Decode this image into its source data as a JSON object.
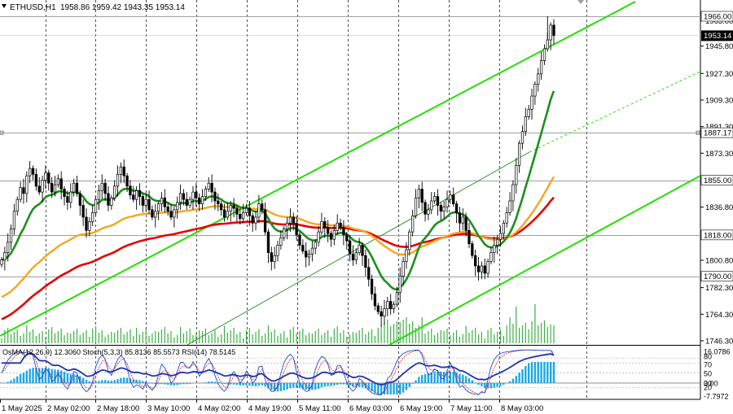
{
  "header": {
    "symbol": "ETHUSD,H1",
    "ohlc": "1958.86 1959.42 1943.35 1953.14"
  },
  "indicator_header": "OsMA(12,26,9) 12.3060  Stoch(5,3,3) 85.8136 85.5573  RSI(14) 78.5145",
  "colors": {
    "candle": "#000000",
    "volume": "#3cb043",
    "channel": "#22e000",
    "ema_fast": "#1e8e1e",
    "ema_mid": "#f5a623",
    "ema_slow": "#e60000",
    "level_line": "#9aa0a6",
    "osma": "#1aa7e6",
    "stoch_main": "#1a4fd6",
    "stoch_signal": "#e02020",
    "rsi": "#2233aa",
    "current_price_bg": "#000000"
  },
  "chart_data": {
    "type": "candlestick",
    "symbol": "ETHUSD",
    "timeframe": "H1",
    "ylim": [
      1746.3,
      1966.0
    ],
    "price_levels": [
      1966.0,
      1887.17,
      1855.0,
      1818.0,
      1790.0
    ],
    "current_price": 1953.14,
    "y_ticks": [
      1963.0,
      1945.8,
      1927.3,
      1909.3,
      1891.3,
      1873.3,
      1836.8,
      1800.8,
      1782.3,
      1764.3,
      1746.3
    ],
    "x_ticks": [
      "1 May 2025",
      "2 May 02:00",
      "2 May 18:00",
      "3 May 10:00",
      "4 May 02:00",
      "4 May 19:00",
      "5 May 11:00",
      "6 May 03:00",
      "6 May 19:00",
      "7 May 11:00",
      "8 May 03:00"
    ],
    "indicator_ticks": [
      "16.0786",
      "80",
      "70",
      "50",
      "30",
      "20",
      "0.00",
      "-7.7972"
    ],
    "closes": [
      1801,
      1806,
      1813,
      1822,
      1834,
      1842,
      1850,
      1846,
      1858,
      1863,
      1859,
      1851,
      1847,
      1855,
      1860,
      1853,
      1847,
      1852,
      1856,
      1849,
      1844,
      1840,
      1847,
      1853,
      1846,
      1838,
      1830,
      1821,
      1827,
      1833,
      1842,
      1848,
      1853,
      1846,
      1838,
      1843,
      1851,
      1859,
      1864,
      1858,
      1851,
      1845,
      1842,
      1848,
      1844,
      1838,
      1842,
      1835,
      1830,
      1834,
      1839,
      1843,
      1837,
      1834,
      1830,
      1835,
      1840,
      1846,
      1842,
      1838,
      1842,
      1847,
      1843,
      1839,
      1844,
      1849,
      1853,
      1847,
      1841,
      1839,
      1835,
      1830,
      1834,
      1838,
      1836,
      1832,
      1829,
      1833,
      1836,
      1831,
      1826,
      1830,
      1839,
      1835,
      1820,
      1806,
      1800,
      1804,
      1811,
      1816,
      1822,
      1826,
      1830,
      1826,
      1818,
      1811,
      1807,
      1803,
      1805,
      1809,
      1813,
      1820,
      1827,
      1823,
      1819,
      1815,
      1821,
      1826,
      1823,
      1818,
      1814,
      1805,
      1801,
      1806,
      1811,
      1804,
      1796,
      1788,
      1778,
      1770,
      1766,
      1763,
      1768,
      1773,
      1768,
      1771,
      1779,
      1790,
      1800,
      1808,
      1820,
      1831,
      1843,
      1849,
      1840,
      1832,
      1835,
      1841,
      1844,
      1838,
      1834,
      1837,
      1842,
      1845,
      1839,
      1833,
      1826,
      1830,
      1821,
      1812,
      1804,
      1797,
      1793,
      1797,
      1792,
      1800,
      1806,
      1811,
      1815,
      1819,
      1826,
      1833,
      1841,
      1852,
      1865,
      1880,
      1888,
      1898,
      1903,
      1912,
      1920,
      1927,
      1936,
      1944,
      1950,
      1960,
      1953
    ]
  }
}
